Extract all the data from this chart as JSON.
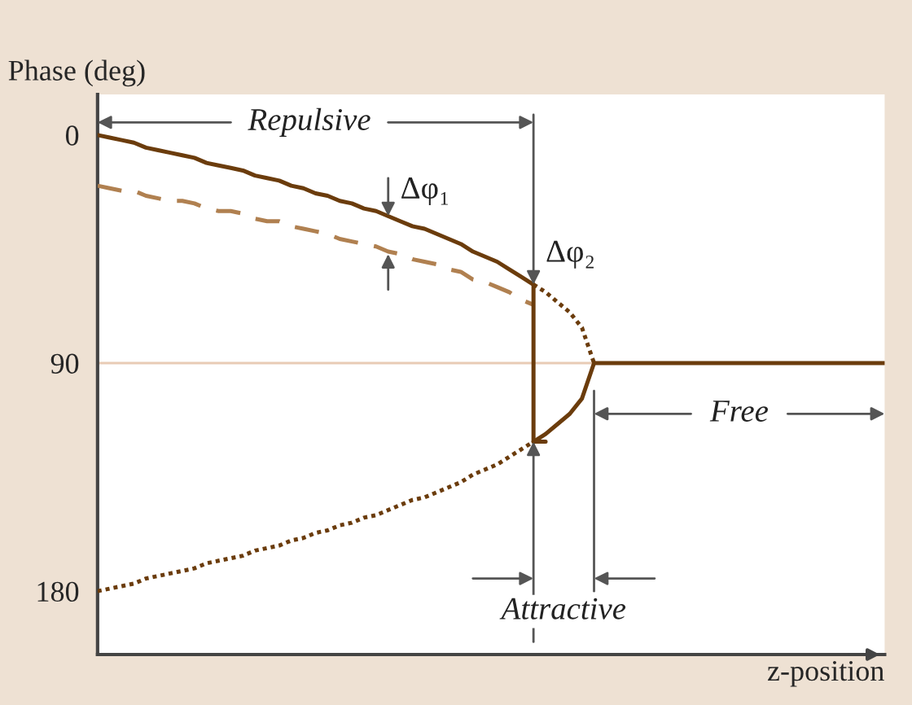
{
  "chart_data": {
    "type": "line",
    "ylabel": "Phase (deg)",
    "xlabel": "z-position",
    "categories": [
      null,
      null,
      null,
      null,
      null,
      null,
      null,
      null,
      null,
      null,
      null,
      null,
      null,
      null,
      null,
      null,
      null,
      null,
      null,
      null,
      null,
      null,
      null,
      null,
      null,
      null,
      null,
      null,
      null,
      null,
      null,
      null,
      null,
      null,
      null,
      null,
      null,
      null,
      null,
      null,
      null,
      null,
      null,
      null,
      null,
      null,
      null,
      null,
      null,
      null,
      null,
      null,
      null,
      null,
      null,
      null,
      null,
      null,
      null,
      null,
      null,
      null,
      null,
      null,
      null,
      null
    ],
    "ylim": [
      205,
      -16
    ],
    "yticks": [
      0,
      90,
      180
    ],
    "tick_labels": "y",
    "grid": false,
    "legend": false,
    "series": [
      {
        "type": "line",
        "line_style": "solid",
        "color": "#6b3c0c",
        "values": [
          0,
          1,
          2,
          3,
          5,
          6,
          7,
          8,
          9,
          11,
          12,
          13,
          14,
          16,
          17,
          18,
          20,
          21,
          23,
          24,
          26,
          27,
          29,
          30,
          32,
          34,
          36,
          37,
          39,
          41,
          43,
          46,
          48,
          50,
          53,
          56,
          59,
          null,
          null,
          null,
          null,
          null,
          null,
          null,
          null,
          null,
          null,
          null,
          null,
          null,
          null,
          null,
          null,
          null,
          null,
          null,
          null,
          null,
          null,
          null,
          null,
          null,
          null,
          null,
          null,
          null
        ]
      },
      {
        "type": "line",
        "line_style": "dotted",
        "color": "#6b3c0c",
        "values": [
          null,
          null,
          null,
          null,
          null,
          null,
          null,
          null,
          null,
          null,
          null,
          null,
          null,
          null,
          null,
          null,
          null,
          null,
          null,
          null,
          null,
          null,
          null,
          null,
          null,
          null,
          null,
          null,
          null,
          null,
          null,
          null,
          null,
          null,
          null,
          null,
          59,
          62,
          66,
          70,
          76,
          90,
          null,
          null,
          null,
          null,
          null,
          null,
          null,
          null,
          null,
          null,
          null,
          null,
          null,
          null,
          null,
          null,
          null,
          null,
          null,
          null,
          null,
          null,
          null,
          null
        ]
      },
      {
        "type": "line",
        "line_style": "solid",
        "color": "#6b3c0c",
        "values": [
          null,
          null,
          null,
          null,
          null,
          null,
          null,
          null,
          null,
          null,
          null,
          null,
          null,
          null,
          null,
          null,
          null,
          null,
          null,
          null,
          null,
          null,
          null,
          null,
          null,
          null,
          null,
          null,
          null,
          null,
          null,
          null,
          null,
          null,
          null,
          null,
          121,
          118,
          114,
          110,
          104,
          90,
          null,
          null,
          null,
          null,
          null,
          null,
          null,
          null,
          null,
          null,
          null,
          null,
          null,
          null,
          null,
          null,
          null,
          null,
          null,
          null,
          null,
          null,
          null,
          null
        ]
      },
      {
        "type": "line",
        "line_style": "dotted",
        "color": "#6b3c0c",
        "values": [
          180,
          179,
          178,
          177,
          175,
          174,
          173,
          172,
          171,
          169,
          168,
          167,
          166,
          164,
          163,
          162,
          160,
          159,
          157,
          156,
          154,
          153,
          151,
          150,
          148,
          146,
          144,
          143,
          141,
          139,
          137,
          134,
          132,
          130,
          127,
          124,
          121,
          null,
          null,
          null,
          null,
          null,
          null,
          null,
          null,
          null,
          null,
          null,
          null,
          null,
          null,
          null,
          null,
          null,
          null,
          null,
          null,
          null,
          null,
          null,
          null,
          null,
          null,
          null,
          null,
          null
        ]
      },
      {
        "type": "line",
        "line_style": "dashed",
        "color": "#b08050",
        "values": [
          20,
          21,
          22,
          22,
          24,
          25,
          26,
          26,
          27,
          29,
          30,
          30,
          31,
          33,
          34,
          34,
          36,
          37,
          38,
          39,
          41,
          42,
          43,
          44,
          46,
          47,
          49,
          50,
          51,
          53,
          54,
          57,
          58,
          60,
          62,
          65,
          67,
          null,
          null,
          null,
          null,
          null,
          null,
          null,
          null,
          null,
          null,
          null,
          null,
          null,
          null,
          null,
          null,
          null,
          null,
          null,
          null,
          null,
          null,
          null,
          null,
          null,
          null,
          null,
          null,
          null
        ]
      },
      {
        "type": "line",
        "line_style": "solid",
        "color": "#6b3c0c",
        "values": [
          null,
          null,
          null,
          null,
          null,
          null,
          null,
          null,
          null,
          null,
          null,
          null,
          null,
          null,
          null,
          null,
          null,
          null,
          null,
          null,
          null,
          null,
          null,
          null,
          null,
          null,
          null,
          null,
          null,
          null,
          null,
          null,
          null,
          null,
          null,
          null,
          null,
          null,
          null,
          null,
          null,
          90,
          90,
          90,
          90,
          90,
          90,
          90,
          90,
          90,
          90,
          90,
          90,
          90,
          90,
          90,
          90,
          90,
          90,
          90,
          90,
          90,
          90,
          90,
          90,
          90
        ]
      },
      {
        "type": "step",
        "line_style": "solid",
        "color": "#6b3c0c",
        "values": [
          null,
          null,
          null,
          null,
          null,
          null,
          null,
          null,
          null,
          null,
          null,
          null,
          null,
          null,
          null,
          null,
          null,
          null,
          null,
          null,
          null,
          null,
          null,
          null,
          null,
          null,
          null,
          null,
          null,
          null,
          null,
          null,
          null,
          null,
          null,
          null,
          59,
          121,
          null,
          null,
          null,
          null,
          null,
          null,
          null,
          null,
          null,
          null,
          null,
          null,
          null,
          null,
          null,
          null,
          null,
          null,
          null,
          null,
          null,
          null,
          null,
          null,
          null,
          null,
          null,
          null
        ]
      }
    ],
    "ref_lines": [
      {
        "axis": "y",
        "value": 90,
        "color": "#e8cbb5"
      }
    ],
    "annotations": [
      "Repulsive",
      "Δφ₁",
      "Δφ₂",
      "Free",
      "Attractive"
    ]
  }
}
